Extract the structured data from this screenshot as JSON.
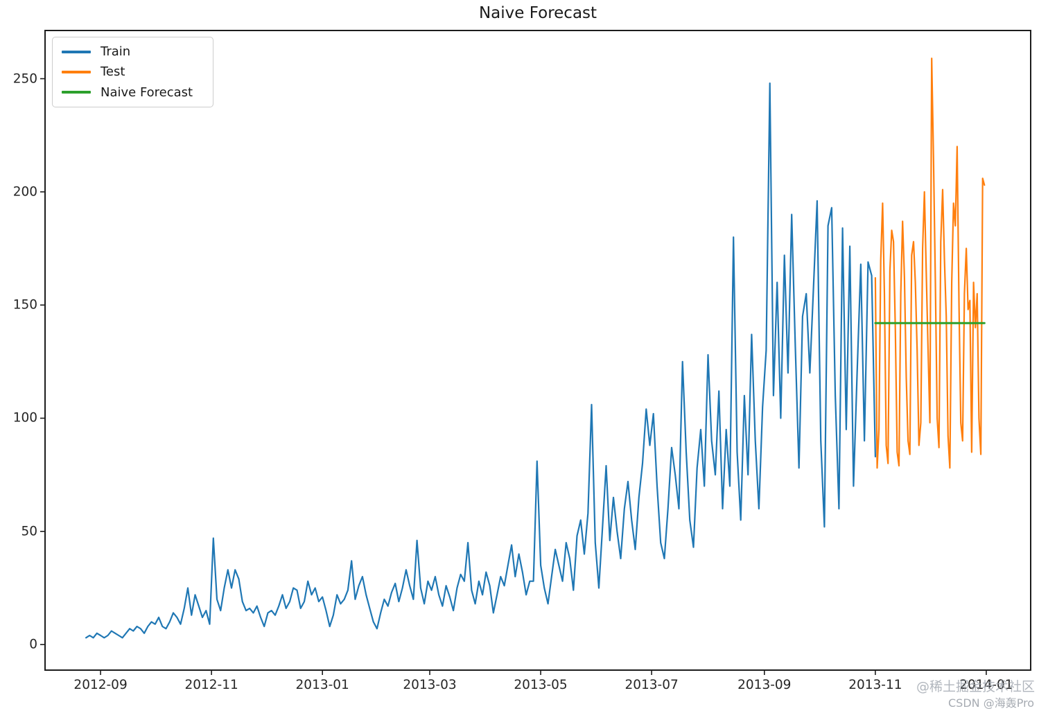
{
  "title": "Naive Forecast",
  "legend": {
    "items": [
      {
        "label": "Train",
        "color": "#1f77b4"
      },
      {
        "label": "Test",
        "color": "#ff7f0e"
      },
      {
        "label": "Naive Forecast",
        "color": "#2ca02c"
      }
    ]
  },
  "watermarks": {
    "line1": "@稀土掘金技术社区",
    "line2": "CSDN @海轰Pro"
  },
  "chart_data": {
    "type": "line",
    "title": "Naive Forecast",
    "grid": false,
    "legend_position": "upper left",
    "x_axis": {
      "unit": "days since 2012-08-24",
      "xlim_days": [
        -22.9,
        519.8
      ],
      "tick_days": [
        8,
        69,
        130,
        189,
        250,
        311,
        373,
        434,
        495
      ],
      "tick_labels": [
        "2012-09",
        "2012-11",
        "2013-01",
        "2013-03",
        "2013-05",
        "2013-07",
        "2013-09",
        "2013-11",
        "2014-01"
      ]
    },
    "y_axis": {
      "ylim": [
        -11.6,
        271.6
      ],
      "ticks": [
        0,
        50,
        100,
        150,
        200,
        250
      ],
      "tick_labels": [
        "0",
        "50",
        "100",
        "150",
        "200",
        "250"
      ]
    },
    "series": [
      {
        "name": "Train",
        "color": "#1f77b4",
        "line_width": 2.2,
        "day_start": 0,
        "day_step": 2,
        "values": [
          3,
          4,
          3,
          5,
          4,
          3,
          4,
          6,
          5,
          4,
          3,
          5,
          7,
          6,
          8,
          7,
          5,
          8,
          10,
          9,
          12,
          8,
          7,
          10,
          14,
          12,
          9,
          16,
          25,
          13,
          22,
          17,
          12,
          15,
          9,
          47,
          20,
          15,
          25,
          33,
          25,
          33,
          29,
          19,
          15,
          16,
          14,
          17,
          12,
          8,
          14,
          15,
          13,
          17,
          22,
          16,
          19,
          25,
          24,
          16,
          19,
          28,
          22,
          25,
          19,
          21,
          15,
          8,
          13,
          22,
          18,
          20,
          24,
          37,
          20,
          26,
          30,
          22,
          16,
          10,
          7,
          14,
          20,
          17,
          23,
          27,
          19,
          25,
          33,
          26,
          20,
          46,
          25,
          18,
          28,
          24,
          30,
          22,
          17,
          26,
          21,
          15,
          25,
          31,
          28,
          45,
          24,
          18,
          28,
          22,
          32,
          26,
          14,
          22,
          30,
          26,
          35,
          44,
          30,
          40,
          32,
          22,
          28,
          28,
          81,
          35,
          25,
          18,
          30,
          42,
          35,
          28,
          45,
          38,
          24,
          48,
          55,
          40,
          58,
          106,
          45,
          25,
          52,
          79,
          46,
          65,
          50,
          38,
          60,
          72,
          55,
          42,
          65,
          80,
          104,
          88,
          102,
          70,
          45,
          38,
          60,
          87,
          75,
          60,
          125,
          85,
          55,
          43,
          78,
          95,
          70,
          128,
          90,
          75,
          112,
          60,
          95,
          70,
          180,
          85,
          55,
          110,
          75,
          137,
          90,
          60,
          105,
          130,
          248,
          110,
          160,
          100,
          172,
          120,
          190,
          132,
          78,
          145,
          155,
          120,
          158,
          196,
          90,
          52,
          185,
          193,
          110,
          60,
          184,
          95,
          176,
          70,
          120,
          168,
          90,
          169,
          163,
          83
        ]
      },
      {
        "name": "Test",
        "color": "#ff7f0e",
        "line_width": 2.2,
        "day_start": 434,
        "day_step": 1,
        "values": [
          162,
          78,
          95,
          170,
          195,
          155,
          88,
          80,
          165,
          183,
          178,
          140,
          85,
          79,
          155,
          187,
          162,
          118,
          90,
          84,
          172,
          178,
          160,
          130,
          88,
          98,
          175,
          200,
          165,
          130,
          98,
          259,
          215,
          160,
          100,
          87,
          178,
          201,
          170,
          145,
          92,
          78,
          160,
          195,
          185,
          220,
          150,
          98,
          90,
          155,
          175,
          148,
          152,
          85,
          160,
          140,
          155,
          100,
          84,
          206,
          203
        ]
      },
      {
        "name": "Naive Forecast",
        "color": "#2ca02c",
        "line_width": 3,
        "day_start": 434,
        "day_step": 60,
        "values": [
          142,
          142
        ]
      }
    ]
  }
}
